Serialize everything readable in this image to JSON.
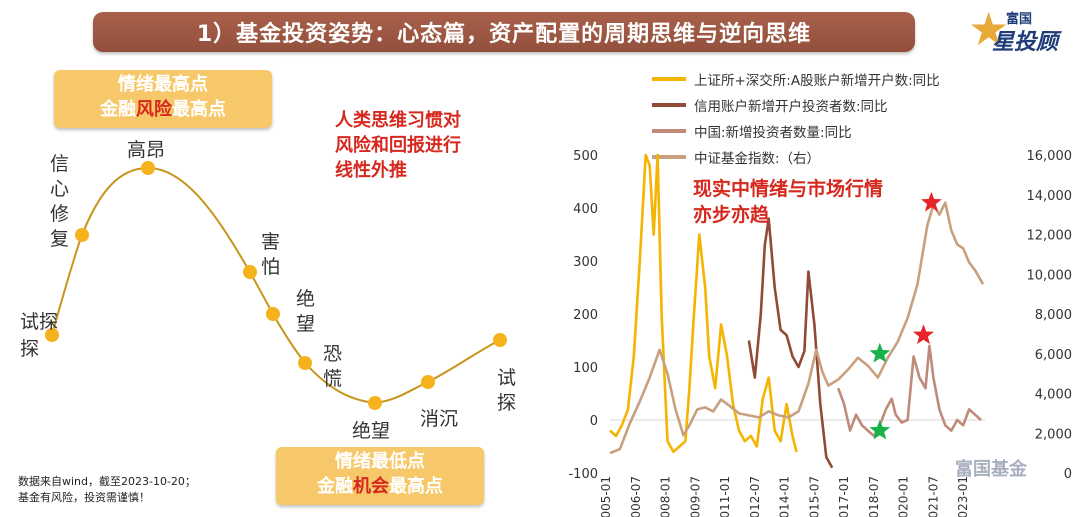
{
  "header": {
    "title": "1）基金投资姿势：心态篇，资产配置的周期思维与逆向思维"
  },
  "logo": {
    "top": "富国",
    "main": "星投顾",
    "icon": "star-icon"
  },
  "top_box": {
    "line1": "情绪最高点",
    "line2_a": "金融",
    "line2_hl": "风险",
    "line2_b": "最高点"
  },
  "bottom_box": {
    "line1": "情绪最低点",
    "line2_a": "金融",
    "line2_hl": "机会",
    "line2_b": "最高点"
  },
  "note_left": {
    "lines": [
      "人类思维习惯对",
      "风险和回报进行",
      "线性外推"
    ]
  },
  "note_right": {
    "lines": [
      "现实中情绪与市场行情",
      "亦步亦趋"
    ]
  },
  "cycle": {
    "stages": [
      "试探",
      "信心",
      "修复",
      "高昂",
      "害怕",
      "绝望",
      "恐慌",
      "绝望",
      "消沉",
      "试探"
    ],
    "labels": {
      "s1": "试探",
      "s2a": "信心",
      "s2b": "修复",
      "s3": "高昂",
      "s4": "害怕",
      "s5": "绝望",
      "s6": "恐慌",
      "s7": "绝望",
      "s8": "消沉",
      "s9": "试探"
    },
    "colors": {
      "line": "#c8951c",
      "dot": "#f6b21c"
    }
  },
  "source": {
    "line1": "数据来自wind，截至2023-10-20；",
    "line2": "基金有风险，投资需谨慎！"
  },
  "watermark": "富国基金",
  "chart_data": {
    "type": "line",
    "legend": [
      {
        "name": "上证所+深交所:A股账户新增开户数:同比",
        "color": "#f4b400"
      },
      {
        "name": "信用账户新增开户投资者数:同比",
        "color": "#8f4b36"
      },
      {
        "name": "中国:新增投资者数量:同比",
        "color": "#c08a7a"
      },
      {
        "name": "中证基金指数:（右）",
        "color": "#c9a07e"
      }
    ],
    "y_left": {
      "min": -100,
      "max": 500,
      "ticks": [
        "500",
        "400",
        "300",
        "200",
        "100",
        "0",
        "-100"
      ]
    },
    "y_right": {
      "min": 0,
      "max": 16000,
      "ticks": [
        "16,000",
        "14,000",
        "12,000",
        "10,000",
        "8,000",
        "6,000",
        "4,000",
        "2,000",
        "0"
      ]
    },
    "x_ticks": [
      "2005-01",
      "2006-07",
      "2008-01",
      "2009-07",
      "2011-01",
      "2012-07",
      "2014-01",
      "2015-07",
      "2017-01",
      "2018-07",
      "2020-01",
      "2021-07",
      "2023-01"
    ],
    "series": [
      {
        "name": "上证所+深交所:A股账户新增开户数:同比",
        "axis": "left",
        "x": [
          2005.0,
          2005.3,
          2005.6,
          2005.9,
          2006.2,
          2006.5,
          2006.8,
          2007.0,
          2007.2,
          2007.4,
          2007.6,
          2007.9,
          2008.2,
          2008.5,
          2008.8,
          2009.0,
          2009.2,
          2009.5,
          2009.8,
          2010.0,
          2010.3,
          2010.6,
          2010.9,
          2011.2,
          2011.5,
          2011.8,
          2012.1,
          2012.4,
          2012.7,
          2013.0,
          2013.3,
          2013.6,
          2013.9,
          2014.2,
          2014.4
        ],
        "y": [
          -20,
          -30,
          -10,
          20,
          120,
          300,
          500,
          480,
          350,
          500,
          200,
          -40,
          -60,
          -50,
          -40,
          60,
          180,
          350,
          250,
          120,
          60,
          180,
          120,
          30,
          -20,
          -40,
          -30,
          -50,
          40,
          80,
          -20,
          -40,
          30,
          -30,
          -60
        ]
      },
      {
        "name": "信用账户新增开户投资者数:同比",
        "axis": "left",
        "x": [
          2012.0,
          2012.3,
          2012.6,
          2012.8,
          2013.0,
          2013.3,
          2013.6,
          2013.9,
          2014.2,
          2014.5,
          2014.8,
          2015.0,
          2015.3,
          2015.6,
          2015.9,
          2016.2
        ],
        "y": [
          150,
          80,
          200,
          330,
          380,
          250,
          170,
          160,
          120,
          100,
          130,
          280,
          180,
          30,
          -70,
          -90
        ]
      },
      {
        "name": "中国:新增投资者数量:同比",
        "axis": "left",
        "x": [
          2016.5,
          2016.8,
          2017.1,
          2017.4,
          2017.7,
          2018.0,
          2018.3,
          2018.6,
          2018.9,
          2019.2,
          2019.4,
          2019.7,
          2020.0,
          2020.3,
          2020.6,
          2020.9,
          2021.1,
          2021.3,
          2021.6,
          2021.9,
          2022.2,
          2022.5,
          2022.8,
          2023.1,
          2023.4,
          2023.7
        ],
        "y": [
          60,
          30,
          -20,
          10,
          -10,
          -20,
          -30,
          -10,
          20,
          40,
          10,
          -5,
          0,
          120,
          80,
          60,
          140,
          80,
          20,
          -10,
          -20,
          0,
          -10,
          20,
          10,
          0
        ]
      },
      {
        "name": "中证基金指数:（右）",
        "axis": "right",
        "x": [
          2005.0,
          2005.5,
          2006.0,
          2006.5,
          2007.0,
          2007.5,
          2007.9,
          2008.3,
          2008.7,
          2009.0,
          2009.4,
          2009.8,
          2010.2,
          2010.6,
          2011.0,
          2011.5,
          2012.0,
          2012.5,
          2013.0,
          2013.5,
          2014.0,
          2014.5,
          2015.0,
          2015.4,
          2015.7,
          2016.0,
          2016.5,
          2017.0,
          2017.5,
          2018.0,
          2018.5,
          2019.0,
          2019.5,
          2020.0,
          2020.5,
          2021.0,
          2021.3,
          2021.6,
          2021.9,
          2022.2,
          2022.5,
          2022.8,
          2023.1,
          2023.4,
          2023.8
        ],
        "y": [
          1000,
          1200,
          2500,
          3600,
          4800,
          6200,
          5000,
          3200,
          1900,
          2400,
          3200,
          3300,
          3100,
          3700,
          3400,
          3000,
          2900,
          2800,
          3100,
          2900,
          2800,
          3100,
          4500,
          6200,
          5100,
          4400,
          4700,
          5200,
          5800,
          5400,
          4800,
          5800,
          6600,
          7800,
          9500,
          12500,
          13500,
          13000,
          13600,
          12200,
          11500,
          11300,
          10600,
          10200,
          9500
        ]
      }
    ],
    "markers": [
      {
        "type": "star",
        "color": "#e8232a",
        "x": 2021.2,
        "y_right": 13600
      },
      {
        "type": "star",
        "color": "#e8232a",
        "x": 2020.8,
        "y_left": 160
      },
      {
        "type": "star",
        "color": "#17b24a",
        "x": 2018.6,
        "y_right": 6000
      },
      {
        "type": "star",
        "color": "#17b24a",
        "x": 2018.6,
        "y_left": -20
      }
    ]
  }
}
